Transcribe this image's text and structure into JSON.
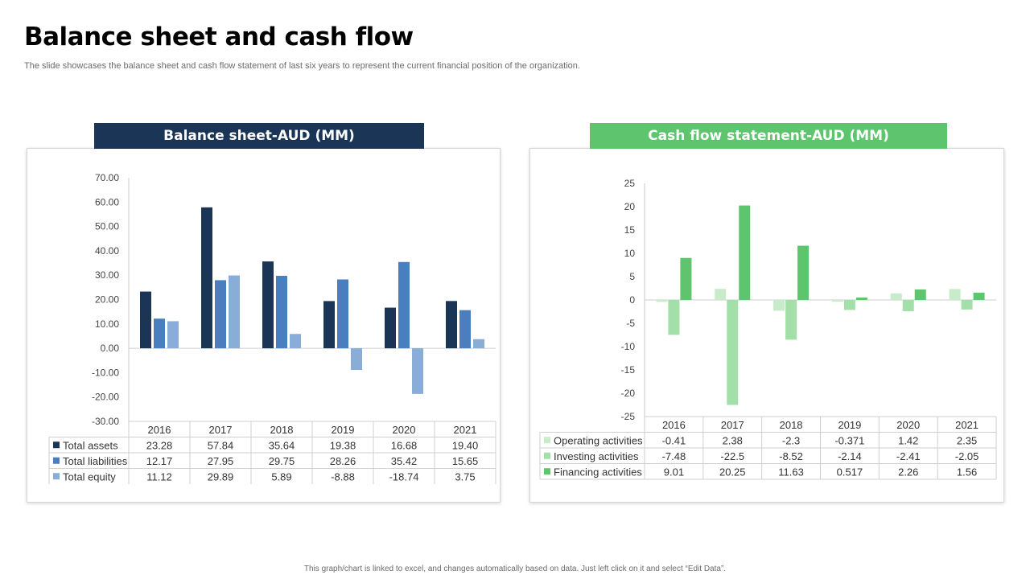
{
  "page": {
    "title": "Balance sheet and cash flow",
    "subtitle": "The slide showcases the balance sheet and cash flow statement of last six years to represent the current financial position of the organization.",
    "footer": "This graph/chart is linked to excel, and changes automatically based on data. Just left click on it and select “Edit Data”."
  },
  "colors": {
    "navy": "#1b3556",
    "green": "#5ec46e"
  },
  "chart_data": [
    {
      "type": "bar",
      "title": "Balance sheet-AUD (MM)",
      "categories": [
        "2016",
        "2017",
        "2018",
        "2019",
        "2020",
        "2021"
      ],
      "ylim": [
        -30,
        70
      ],
      "yticks": [
        "70.00",
        "60.00",
        "50.00",
        "40.00",
        "30.00",
        "20.00",
        "10.00",
        "0.00",
        "-10.00",
        "-20.00",
        "-30.00"
      ],
      "series": [
        {
          "name": "Total assets",
          "color": "#1b3556",
          "values": [
            23.28,
            57.84,
            35.64,
            19.38,
            16.68,
            19.4
          ],
          "labels": [
            "23.28",
            "57.84",
            "35.64",
            "19.38",
            "16.68",
            "19.40"
          ]
        },
        {
          "name": "Total liabilities",
          "color": "#4a7fbf",
          "values": [
            12.17,
            27.95,
            29.75,
            28.26,
            35.42,
            15.65
          ],
          "labels": [
            "12.17",
            "27.95",
            "29.75",
            "28.26",
            "35.42",
            "15.65"
          ]
        },
        {
          "name": "Total equity",
          "color": "#8aadd7",
          "values": [
            11.12,
            29.89,
            5.89,
            -8.88,
            -18.74,
            3.75
          ],
          "labels": [
            "11.12",
            "29.89",
            "5.89",
            "-8.88",
            "-18.74",
            "3.75"
          ]
        }
      ]
    },
    {
      "type": "bar",
      "title": "Cash flow statement-AUD (MM)",
      "categories": [
        "2016",
        "2017",
        "2018",
        "2019",
        "2020",
        "2021"
      ],
      "ylim": [
        -25,
        25
      ],
      "yticks": [
        "25",
        "20",
        "15",
        "10",
        "5",
        "0",
        "-5",
        "-10",
        "-15",
        "-20",
        "-25"
      ],
      "series": [
        {
          "name": "Operating activities",
          "color": "#c8ecc9",
          "values": [
            -0.41,
            2.38,
            -2.3,
            -0.371,
            1.42,
            2.35
          ],
          "labels": [
            "-0.41",
            "2.38",
            "-2.3",
            "-0.371",
            "1.42",
            "2.35"
          ]
        },
        {
          "name": "Investing activities",
          "color": "#a3dfa9",
          "values": [
            -7.48,
            -22.5,
            -8.52,
            -2.14,
            -2.41,
            -2.05
          ],
          "labels": [
            "-7.48",
            "-22.5",
            "-8.52",
            "-2.14",
            "-2.41",
            "-2.05"
          ]
        },
        {
          "name": "Financing activities",
          "color": "#5ec46e",
          "values": [
            9.01,
            20.25,
            11.63,
            0.517,
            2.26,
            1.56
          ],
          "labels": [
            "9.01",
            "20.25",
            "11.63",
            "0.517",
            "2.26",
            "1.56"
          ]
        }
      ]
    }
  ]
}
